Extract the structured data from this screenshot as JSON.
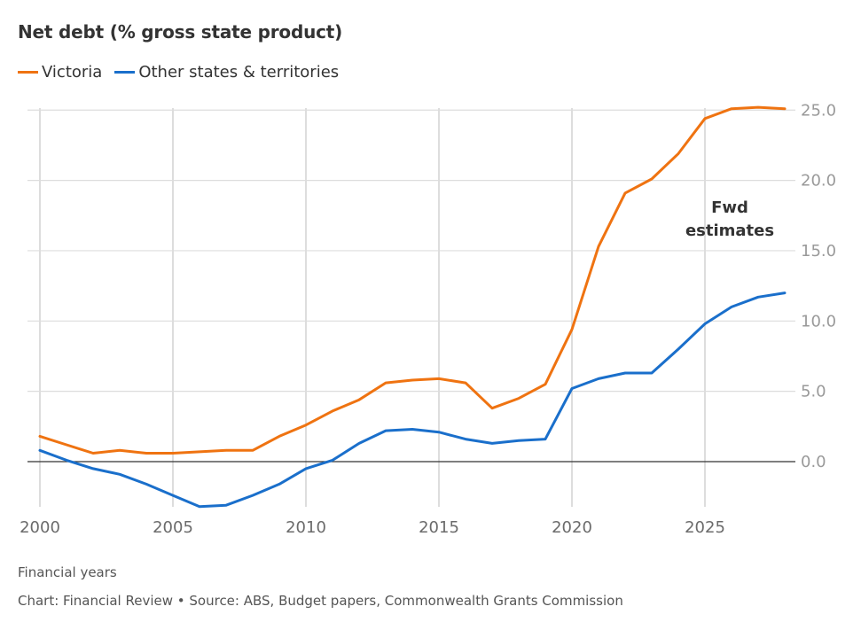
{
  "chart_data": {
    "type": "line",
    "title": "Net debt (% gross state product)",
    "xlabel": "Financial years",
    "ylabel": "",
    "x": [
      2000,
      2001,
      2002,
      2003,
      2004,
      2005,
      2006,
      2007,
      2008,
      2009,
      2010,
      2011,
      2012,
      2013,
      2014,
      2015,
      2016,
      2017,
      2018,
      2019,
      2020,
      2021,
      2022,
      2023,
      2024,
      2025,
      2026,
      2027,
      2028
    ],
    "series": [
      {
        "name": "Victoria",
        "color": "#EF7311",
        "values": [
          1.8,
          1.2,
          0.6,
          0.8,
          0.6,
          0.6,
          0.7,
          0.8,
          0.8,
          1.8,
          2.6,
          3.6,
          4.4,
          5.6,
          5.8,
          5.9,
          5.6,
          3.8,
          4.5,
          5.5,
          9.4,
          15.3,
          19.1,
          20.1,
          21.9,
          24.4,
          25.1,
          25.2,
          25.1
        ]
      },
      {
        "name": "Other states & territories",
        "color": "#1A6FCB",
        "values": [
          0.8,
          0.1,
          -0.5,
          -0.9,
          -1.6,
          -2.4,
          -3.2,
          -3.1,
          -2.4,
          -1.6,
          -0.5,
          0.1,
          1.3,
          2.2,
          2.3,
          2.1,
          1.6,
          1.3,
          1.5,
          1.6,
          5.2,
          5.9,
          6.3,
          6.3,
          8.0,
          9.8,
          11.0,
          11.7,
          12.0
        ]
      }
    ],
    "xlim": [
      2000,
      2028
    ],
    "ylim": [
      -3.2,
      25.0
    ],
    "x_ticks": [
      2000,
      2005,
      2010,
      2015,
      2020,
      2025
    ],
    "x_tick_labels": [
      "2000",
      "2005",
      "2010",
      "2015",
      "2020",
      "2025"
    ],
    "y_ticks": [
      25,
      20,
      15,
      10,
      5,
      0
    ],
    "y_tick_labels": [
      "25.0",
      "20.0",
      "15.0",
      "10.0",
      "5.0",
      "0.0"
    ],
    "y_axis_side": "right",
    "grid": true,
    "legend_position": "top-left",
    "annotations": [
      {
        "lines": [
          "Fwd",
          "estimates"
        ],
        "x": 2026
      }
    ]
  },
  "header": {
    "title": "Net debt (% gross state product)"
  },
  "legend": [
    {
      "label": "Victoria",
      "color": "#EF7311"
    },
    {
      "label": "Other states & territories",
      "color": "#1A6FCB"
    }
  ],
  "footer": {
    "xlabel": "Financial years",
    "source": "Chart: Financial Review • Source: ABS, Budget papers, Commonwealth Grants Commission"
  }
}
